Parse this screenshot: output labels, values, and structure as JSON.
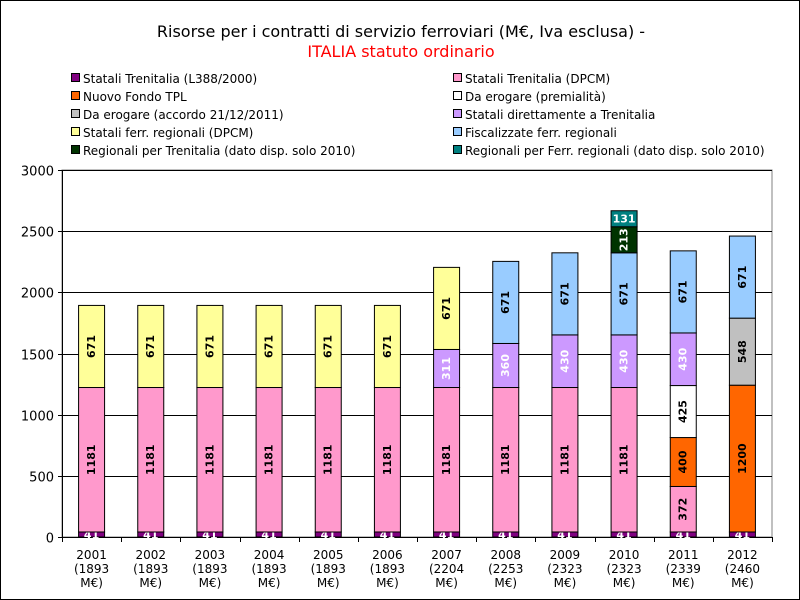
{
  "chart_data": {
    "type": "bar",
    "stacked": true,
    "title": "Risorse per i contratti di servizio ferroviari (M€, Iva esclusa) -",
    "subtitle": "ITALIA statuto ordinario",
    "categories": [
      [
        "2001",
        "(1893",
        "M€)"
      ],
      [
        "2002",
        "(1893",
        "M€)"
      ],
      [
        "2003",
        "(1893",
        "M€)"
      ],
      [
        "2004",
        "(1893",
        "M€)"
      ],
      [
        "2005",
        "(1893",
        "M€)"
      ],
      [
        "2006",
        "(1893",
        "M€)"
      ],
      [
        "2007",
        "(2204",
        "M€)"
      ],
      [
        "2008",
        "(2253",
        "M€)"
      ],
      [
        "2009",
        "(2323",
        "M€)"
      ],
      [
        "2010",
        "(2323",
        "M€)"
      ],
      [
        "2011",
        "(2339",
        "M€)"
      ],
      [
        "2012",
        "(2460",
        "M€)"
      ]
    ],
    "ylim": [
      0,
      3000
    ],
    "yticks": [
      "0",
      "500",
      "1000",
      "1500",
      "2000",
      "2500",
      "3000"
    ],
    "grid": true,
    "legend_position": "top",
    "series": [
      {
        "name": "Statali Trenitalia (L388/2000)",
        "color": "#800080",
        "label_color": "#ffffff",
        "values": [
          41,
          41,
          41,
          41,
          41,
          41,
          41,
          41,
          41,
          41,
          41,
          41
        ],
        "labels": [
          "41",
          "41",
          "41",
          "41",
          "41",
          "41",
          "41",
          "41",
          "41",
          "41",
          "41",
          "41"
        ]
      },
      {
        "name": "Statali Trenitalia (DPCM)",
        "color": "#ff99cc",
        "label_color": "#000000",
        "values": [
          1181,
          1181,
          1181,
          1181,
          1181,
          1181,
          1181,
          1181,
          1181,
          1181,
          372,
          0
        ],
        "labels": [
          "1181",
          "1181",
          "1181",
          "1181",
          "1181",
          "1181",
          "1181",
          "1181",
          "1181",
          "1181",
          "372",
          ""
        ]
      },
      {
        "name": "Nuovo Fondo TPL",
        "color": "#ff6600",
        "label_color": "#000000",
        "values": [
          0,
          0,
          0,
          0,
          0,
          0,
          0,
          0,
          0,
          0,
          400,
          1200
        ],
        "labels": [
          "",
          "",
          "",
          "",
          "",
          "",
          "",
          "",
          "",
          "",
          "400",
          "1200"
        ]
      },
      {
        "name": "Da erogare (premialità)",
        "color": "#ffffff",
        "label_color": "#000000",
        "values": [
          0,
          0,
          0,
          0,
          0,
          0,
          0,
          0,
          0,
          0,
          425,
          0
        ],
        "labels": [
          "",
          "",
          "",
          "",
          "",
          "",
          "",
          "",
          "",
          "",
          "425",
          ""
        ]
      },
      {
        "name": "Da erogare (accordo 21/12/2011)",
        "color": "#c0c0c0",
        "label_color": "#000000",
        "values": [
          0,
          0,
          0,
          0,
          0,
          0,
          0,
          0,
          0,
          0,
          0,
          548
        ],
        "labels": [
          "",
          "",
          "",
          "",
          "",
          "",
          "",
          "",
          "",
          "",
          "",
          "548"
        ]
      },
      {
        "name": "Statali direttamente a Trenitalia",
        "color": "#cc99ff",
        "label_color": "#ffffff",
        "values": [
          0,
          0,
          0,
          0,
          0,
          0,
          311,
          360,
          430,
          430,
          430,
          0
        ],
        "labels": [
          "",
          "",
          "",
          "",
          "",
          "",
          "311",
          "360",
          "430",
          "430",
          "430",
          ""
        ]
      },
      {
        "name": "Statali ferr. regionali (DPCM)",
        "color": "#ffff99",
        "label_color": "#000000",
        "values": [
          671,
          671,
          671,
          671,
          671,
          671,
          671,
          0,
          0,
          0,
          0,
          0
        ],
        "labels": [
          "671",
          "671",
          "671",
          "671",
          "671",
          "671",
          "671",
          "",
          "",
          "",
          "",
          ""
        ]
      },
      {
        "name": "Fiscalizzate ferr. regionali",
        "color": "#99ccff",
        "label_color": "#000000",
        "values": [
          0,
          0,
          0,
          0,
          0,
          0,
          0,
          671,
          671,
          671,
          671,
          671
        ],
        "labels": [
          "",
          "",
          "",
          "",
          "",
          "",
          "",
          "671",
          "671",
          "671",
          "671",
          "671"
        ]
      },
      {
        "name": "Regionali per Trenitalia (dato disp. solo 2010)",
        "color": "#003300",
        "label_color": "#ffffff",
        "values": [
          0,
          0,
          0,
          0,
          0,
          0,
          0,
          0,
          0,
          213,
          0,
          0
        ],
        "labels": [
          "",
          "",
          "",
          "",
          "",
          "",
          "",
          "",
          "",
          "213",
          "",
          ""
        ]
      },
      {
        "name": "Regionali per Ferr. regionali (dato disp. solo 2010)",
        "color": "#008080",
        "label_color": "#ffffff",
        "values": [
          0,
          0,
          0,
          0,
          0,
          0,
          0,
          0,
          0,
          131,
          0,
          0
        ],
        "labels": [
          "",
          "",
          "",
          "",
          "",
          "",
          "",
          "",
          "",
          "131",
          "",
          ""
        ]
      }
    ]
  }
}
